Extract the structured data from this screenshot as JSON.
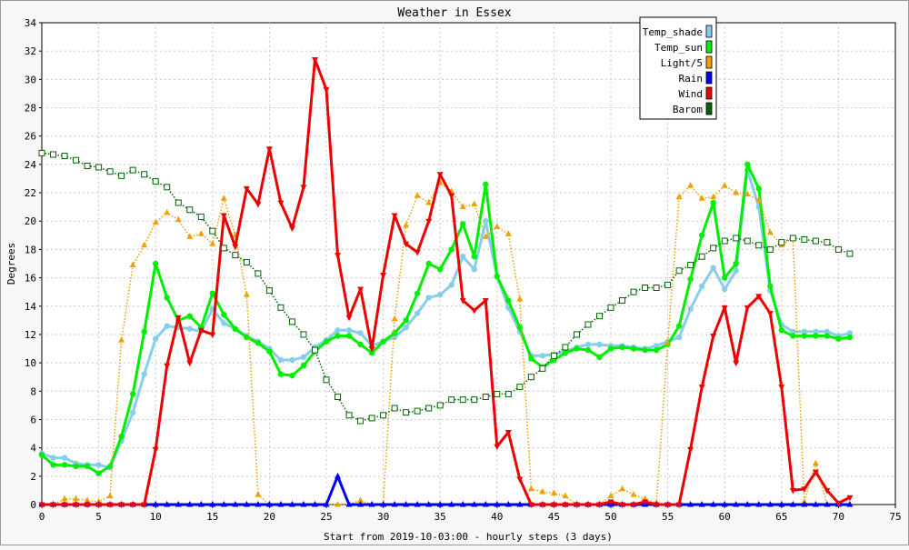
{
  "chart_data": {
    "type": "line",
    "title": "Weather in Essex",
    "xlabel": "Start from 2019-10-03:00 - hourly steps (3 days)",
    "ylabel": "Degrees",
    "xlim": [
      0,
      75
    ],
    "ylim": [
      0,
      34
    ],
    "xticks": [
      0,
      5,
      10,
      15,
      20,
      25,
      30,
      35,
      40,
      45,
      50,
      55,
      60,
      65,
      70,
      75
    ],
    "yticks": [
      0,
      2,
      4,
      6,
      8,
      10,
      12,
      14,
      16,
      18,
      20,
      22,
      24,
      26,
      28,
      30,
      32,
      34
    ],
    "grid": true,
    "legend_position": "top-right",
    "series": [
      {
        "name": "Temp_shade",
        "color": "#87ceeb",
        "marker": "circle",
        "style": "solid",
        "values": [
          3.6,
          3.3,
          3.3,
          2.9,
          2.8,
          2.8,
          2.6,
          4.5,
          6.5,
          9.2,
          11.7,
          12.6,
          12.5,
          12.4,
          12.2,
          13.8,
          12.8,
          12.4,
          11.9,
          11.5,
          11.0,
          10.2,
          10.2,
          10.4,
          11.1,
          11.6,
          12.3,
          12.3,
          12.1,
          11.2,
          11.5,
          11.8,
          12.5,
          13.5,
          14.6,
          14.8,
          15.5,
          17.5,
          16.6,
          20.0,
          16.1,
          13.9,
          12.2,
          10.5,
          10.5,
          10.6,
          10.8,
          11.1,
          11.3,
          11.3,
          11.2,
          11.2,
          11.1,
          11.0,
          11.2,
          11.5,
          11.8,
          13.8,
          15.4,
          16.7,
          15.2,
          16.5,
          23.6,
          21.0,
          15.1,
          12.7,
          12.2,
          12.2,
          12.2,
          12.2,
          11.9,
          12.1
        ]
      },
      {
        "name": "Temp_sun",
        "color": "#00ee00",
        "marker": "circle",
        "style": "solid",
        "values": [
          3.5,
          2.8,
          2.8,
          2.7,
          2.7,
          2.2,
          2.7,
          4.8,
          7.8,
          12.2,
          17.0,
          14.6,
          13.0,
          13.3,
          12.5,
          14.9,
          13.4,
          12.4,
          11.8,
          11.4,
          10.8,
          9.2,
          9.1,
          9.8,
          10.8,
          11.5,
          11.9,
          11.9,
          11.3,
          10.7,
          11.5,
          12.1,
          13.0,
          14.9,
          17.0,
          16.6,
          18.0,
          19.8,
          17.5,
          22.6,
          16.1,
          14.4,
          12.5,
          10.3,
          9.7,
          10.2,
          10.7,
          11.0,
          10.9,
          10.4,
          11.0,
          11.1,
          11.0,
          10.9,
          10.9,
          11.3,
          12.6,
          15.9,
          19.0,
          21.3,
          16.0,
          17.0,
          24.0,
          22.3,
          15.4,
          12.3,
          11.9,
          11.9,
          11.9,
          11.9,
          11.7,
          11.8
        ]
      },
      {
        "name": "Light/5",
        "color": "#f0a000",
        "marker": "triangle-up",
        "style": "dotted",
        "values": [
          0.0,
          0.0,
          0.4,
          0.4,
          0.3,
          0.2,
          0.6,
          11.6,
          16.9,
          18.3,
          19.9,
          20.6,
          20.1,
          18.9,
          19.1,
          18.4,
          21.6,
          19.0,
          14.8,
          0.7,
          0.0,
          0.0,
          0.0,
          0.0,
          0.0,
          0.0,
          0.0,
          0.0,
          0.3,
          0.0,
          0.0,
          13.1,
          19.7,
          21.8,
          21.3,
          22.7,
          22.1,
          21.0,
          21.2,
          18.9,
          19.6,
          19.1,
          14.5,
          1.1,
          0.9,
          0.8,
          0.6,
          0.0,
          0.0,
          0.0,
          0.6,
          1.1,
          0.7,
          0.4,
          0.1,
          11.4,
          21.7,
          22.5,
          21.6,
          21.7,
          22.5,
          22.0,
          21.9,
          21.5,
          19.2,
          18.3,
          18.8,
          0.2,
          2.9,
          0.0,
          0.0,
          0.0
        ]
      },
      {
        "name": "Rain",
        "color": "#0000ee",
        "marker": "triangle-up",
        "style": "solid",
        "values": [
          0,
          0,
          0,
          0,
          0,
          0,
          0,
          0,
          0,
          0,
          0,
          0,
          0,
          0,
          0,
          0,
          0,
          0,
          0,
          0,
          0,
          0,
          0,
          0,
          0,
          0,
          2.0,
          0,
          0,
          0,
          0,
          0,
          0,
          0,
          0,
          0,
          0,
          0,
          0,
          0,
          0,
          0,
          0,
          0,
          0,
          0,
          0,
          0,
          0,
          0,
          0,
          0,
          0,
          0,
          0,
          0,
          0,
          0,
          0,
          0,
          0,
          0,
          0,
          0,
          0,
          0,
          0,
          0,
          0,
          0,
          0,
          0
        ]
      },
      {
        "name": "Wind",
        "color": "#ee0000",
        "marker": "triangle-down",
        "style": "solid",
        "values": [
          0,
          0,
          0,
          0,
          0,
          0,
          0,
          0,
          0,
          0,
          3.9,
          9.8,
          13.2,
          10.0,
          12.3,
          12.0,
          20.4,
          18.2,
          22.3,
          21.2,
          25.1,
          21.3,
          19.5,
          22.4,
          31.4,
          29.3,
          17.6,
          13.2,
          15.2,
          11.0,
          16.2,
          20.4,
          18.4,
          17.8,
          20.0,
          23.3,
          21.8,
          14.4,
          13.7,
          14.4,
          4.1,
          5.1,
          1.8,
          0,
          0,
          0,
          0,
          0,
          0,
          0,
          0.2,
          0,
          0,
          0.2,
          0,
          0,
          0,
          3.9,
          8.3,
          11.9,
          13.9,
          10.0,
          13.9,
          14.7,
          13.5,
          8.3,
          1.0,
          1.1,
          2.3,
          1.0,
          0.1,
          0.5
        ]
      },
      {
        "name": "Barom",
        "color": "#006400",
        "marker": "square",
        "style": "dotted",
        "values": [
          24.8,
          24.7,
          24.6,
          24.3,
          23.9,
          23.8,
          23.5,
          23.2,
          23.6,
          23.3,
          22.8,
          22.4,
          21.3,
          20.8,
          20.3,
          19.3,
          18.1,
          17.6,
          17.1,
          16.3,
          15.1,
          13.9,
          12.9,
          12.0,
          10.9,
          8.8,
          7.6,
          6.3,
          5.9,
          6.1,
          6.3,
          6.8,
          6.5,
          6.6,
          6.8,
          7.0,
          7.4,
          7.4,
          7.4,
          7.6,
          7.8,
          7.8,
          8.3,
          9.0,
          9.6,
          10.5,
          11.1,
          12.0,
          12.7,
          13.3,
          13.9,
          14.4,
          15.0,
          15.3,
          15.3,
          15.5,
          16.5,
          16.9,
          17.5,
          18.1,
          18.6,
          18.8,
          18.6,
          18.3,
          18.0,
          18.5,
          18.8,
          18.7,
          18.6,
          18.5,
          18.0,
          17.7
        ]
      }
    ]
  }
}
